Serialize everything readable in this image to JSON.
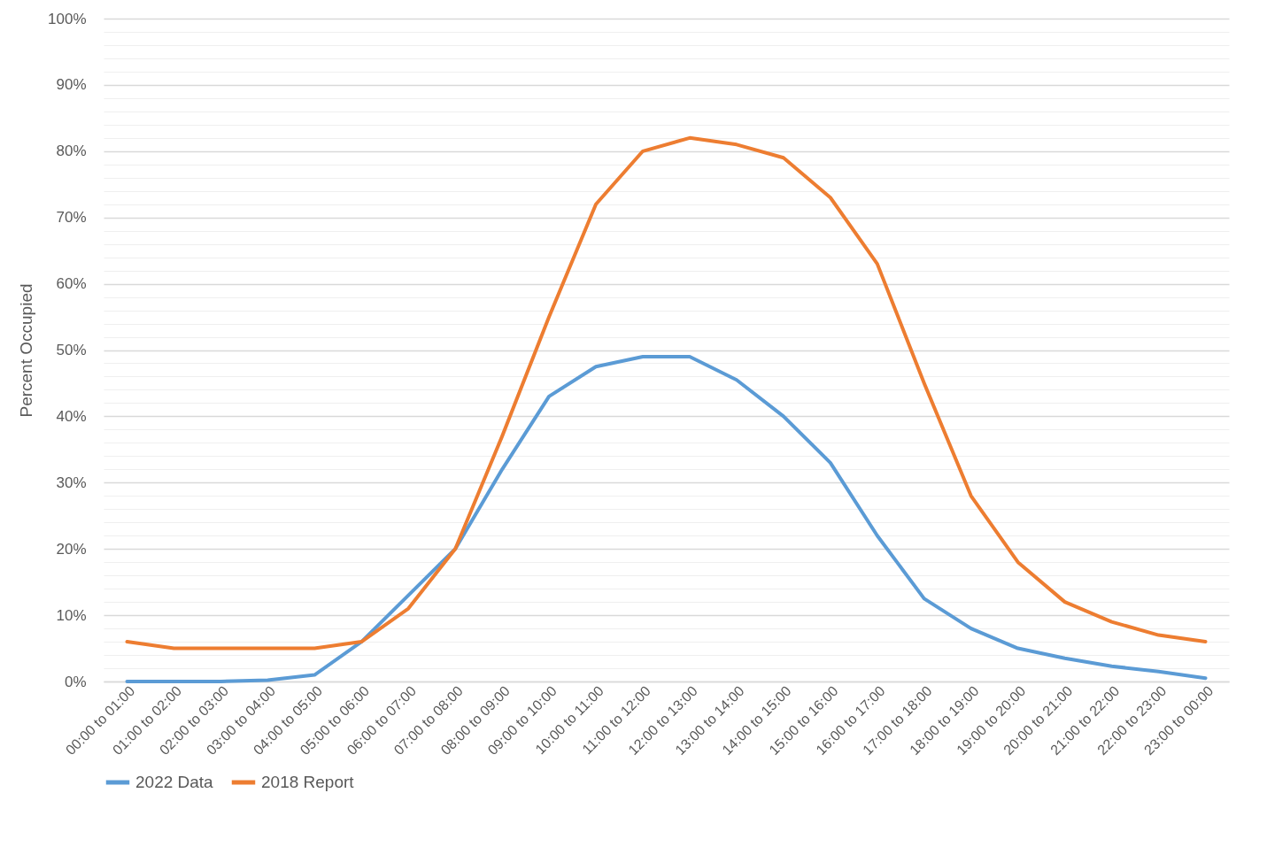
{
  "chart_data": {
    "type": "line",
    "ylabel": "Percent Occupied",
    "categories": [
      "00:00 to 01:00",
      "01:00 to 02:00",
      "02:00 to 03:00",
      "03:00 to 04:00",
      "04:00 to 05:00",
      "05:00 to 06:00",
      "06:00 to 07:00",
      "07:00 to 08:00",
      "08:00 to 09:00",
      "09:00 to 10:00",
      "10:00 to 11:00",
      "11:00 to 12:00",
      "12:00 to 13:00",
      "13:00 to 14:00",
      "14:00 to 15:00",
      "15:00 to 16:00",
      "16:00 to 17:00",
      "17:00 to 18:00",
      "18:00 to 19:00",
      "19:00 to 20:00",
      "20:00 to 21:00",
      "21:00 to 22:00",
      "22:00 to 23:00",
      "23:00 to 00:00"
    ],
    "series": [
      {
        "name": "2022 Data",
        "color": "#5b9bd5",
        "values": [
          0,
          0,
          0,
          0.2,
          1,
          6,
          13,
          20,
          32,
          43,
          47.5,
          49,
          49,
          45.5,
          40,
          33,
          22,
          12.5,
          8,
          5,
          3.5,
          2.3,
          1.5,
          0.5
        ]
      },
      {
        "name": "2018 Report",
        "color": "#ed7d31",
        "values": [
          6,
          5,
          5,
          5,
          5,
          6,
          11,
          20,
          37,
          55,
          72,
          80,
          82,
          81,
          79,
          73,
          63,
          45,
          28,
          18,
          12,
          9,
          7,
          6
        ]
      }
    ],
    "ylim": [
      0,
      100
    ],
    "yticks": [
      {
        "value": 0,
        "label": "0%"
      },
      {
        "value": 2,
        "label": null
      },
      {
        "value": 4,
        "label": null
      },
      {
        "value": 6,
        "label": null
      },
      {
        "value": 8,
        "label": null
      },
      {
        "value": 10,
        "label": "10%"
      },
      {
        "value": 12,
        "label": null
      },
      {
        "value": 14,
        "label": null
      },
      {
        "value": 16,
        "label": null
      },
      {
        "value": 18,
        "label": null
      },
      {
        "value": 20,
        "label": "20%"
      },
      {
        "value": 22,
        "label": null
      },
      {
        "value": 24,
        "label": null
      },
      {
        "value": 26,
        "label": null
      },
      {
        "value": 28,
        "label": null
      },
      {
        "value": 30,
        "label": "30%"
      },
      {
        "value": 32,
        "label": null
      },
      {
        "value": 34,
        "label": null
      },
      {
        "value": 36,
        "label": null
      },
      {
        "value": 38,
        "label": null
      },
      {
        "value": 40,
        "label": "40%"
      },
      {
        "value": 42,
        "label": null
      },
      {
        "value": 44,
        "label": null
      },
      {
        "value": 46,
        "label": null
      },
      {
        "value": 48,
        "label": null
      },
      {
        "value": 50,
        "label": "50%"
      },
      {
        "value": 52,
        "label": null
      },
      {
        "value": 54,
        "label": null
      },
      {
        "value": 56,
        "label": null
      },
      {
        "value": 58,
        "label": null
      },
      {
        "value": 60,
        "label": "60%"
      },
      {
        "value": 62,
        "label": null
      },
      {
        "value": 64,
        "label": null
      },
      {
        "value": 66,
        "label": null
      },
      {
        "value": 68,
        "label": null
      },
      {
        "value": 70,
        "label": "70%"
      },
      {
        "value": 72,
        "label": null
      },
      {
        "value": 74,
        "label": null
      },
      {
        "value": 76,
        "label": null
      },
      {
        "value": 78,
        "label": null
      },
      {
        "value": 80,
        "label": "80%"
      },
      {
        "value": 82,
        "label": null
      },
      {
        "value": 84,
        "label": null
      },
      {
        "value": 86,
        "label": null
      },
      {
        "value": 88,
        "label": null
      },
      {
        "value": 90,
        "label": "90%"
      },
      {
        "value": 92,
        "label": null
      },
      {
        "value": 94,
        "label": null
      },
      {
        "value": 96,
        "label": null
      },
      {
        "value": 98,
        "label": null
      },
      {
        "value": 100,
        "label": "100%"
      }
    ],
    "grid": "y",
    "legend": "bottom",
    "marker": "none",
    "line_style": "solid"
  }
}
